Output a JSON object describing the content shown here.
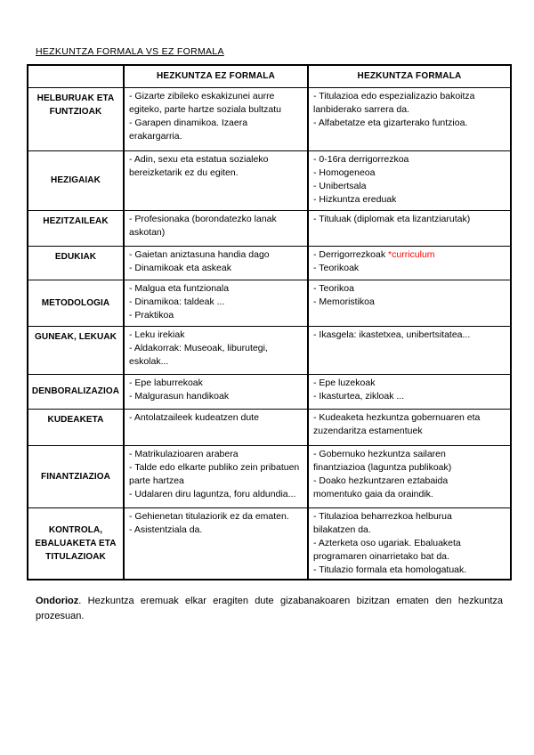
{
  "page": {
    "title": "HEZKUNTZA FORMALA VS EZ FORMALA"
  },
  "table": {
    "headers": [
      "",
      "HEZKUNTZA EZ FORMALA",
      "HEZKUNTZA FORMALA"
    ],
    "rows": [
      {
        "label": "HELBURUAK ETA FUNTZIOAK",
        "ez_formala": [
          "- Gizarte zibileko eskakizunei aurre",
          "egiteko, parte hartze soziala bultzatu",
          "- Garapen dinamikoa. Izaera",
          "erakargarria."
        ],
        "formala": [
          "- Titulazioa edo espezializazio bakoitza",
          "lanbiderako sarrera da.",
          "- Alfabetatze eta gizarterako funtzioa."
        ]
      },
      {
        "label": "HEZIGAIAK",
        "ez_formala": [
          "- Adin, sexu eta estatua sozialeko",
          "bereizketarik ez du egiten."
        ],
        "formala": [
          "- 0-16ra derrigorrezkoa",
          "- Homogeneoa",
          "- Unibertsala",
          "- Hizkuntza ereduak"
        ]
      },
      {
        "label": "HEZITZAILEAK",
        "ez_formala": [
          "- Profesionaka (borondatezko lanak",
          "askotan)"
        ],
        "formala": [
          "- Tituluak (diplomak eta lizantziarutak)"
        ]
      },
      {
        "label": "EDUKIAK",
        "ez_formala": [
          "- Gaietan aniztasuna handia dago",
          "- Dinamikoak eta askeak"
        ],
        "formala": [
          [
            {
              "text": "- Derrigorrezkoak "
            },
            {
              "text": "*curriculum",
              "color": "accent_red"
            }
          ],
          "- Teorikoak"
        ]
      },
      {
        "label": "METODOLOGIA",
        "ez_formala": [
          "- Malgua eta funtzionala",
          "- Dinamikoa: taldeak ...",
          "- Praktikoa"
        ],
        "formala": [
          "- Teorikoa",
          "- Memoristikoa"
        ]
      },
      {
        "label": "GUNEAK, LEKUAK",
        "ez_formala": [
          "- Leku irekiak",
          "- Aldakorrak: Museoak, liburutegi,",
          "eskolak..."
        ],
        "formala": [
          "- Ikasgela: ikastetxea, unibertsitatea..."
        ]
      },
      {
        "label": "DENBORALIZAZIOA",
        "ez_formala": [
          "- Epe laburrekoak",
          "- Malgurasun handikoak"
        ],
        "formala": [
          "- Epe luzekoak",
          "- Ikasturtea, zikloak ..."
        ]
      },
      {
        "label": "KUDEAKETA",
        "ez_formala": [
          "- Antolatzaileek kudeatzen dute"
        ],
        "formala": [
          "- Kudeaketa hezkuntza gobernuaren eta",
          "zuzendaritza estamentuek"
        ]
      },
      {
        "label": "FINANTZIAZIOA",
        "ez_formala": [
          "- Matrikulazioaren arabera",
          "- Talde edo elkarte publiko zein pribatuen",
          "parte hartzea",
          "- Udalaren diru laguntza, foru aldundia..."
        ],
        "formala": [
          "- Gobernuko hezkuntza sailaren",
          "finantziazioa (laguntza publikoak)",
          "- Doako hezkuntzaren eztabaida",
          "momentuko gaia da oraindik."
        ]
      },
      {
        "label": "KONTROLA, EBALUAKETA ETA TITULAZIOAK",
        "ez_formala": [
          "- Gehienetan titulaziorik ez da ematen.",
          "- Asistentziala da."
        ],
        "formala": [
          "- Titulazioa beharrezkoa helburua",
          "bilakatzen da.",
          "- Azterketa oso ugariak. Ebaluaketa",
          "programaren oinarrietako bat da.",
          "- Titulazio formala eta homologatuak."
        ]
      }
    ]
  },
  "footer": {
    "lead": "Ondorioz",
    "rest": ". Hezkuntza eremuak elkar eragiten dute gizabanakoaren bizitzan ematen den hezkuntza prozesuan."
  },
  "colors": {
    "accent_red": "#ff0000",
    "border": "#000000",
    "text": "#000000",
    "background": "#ffffff"
  }
}
